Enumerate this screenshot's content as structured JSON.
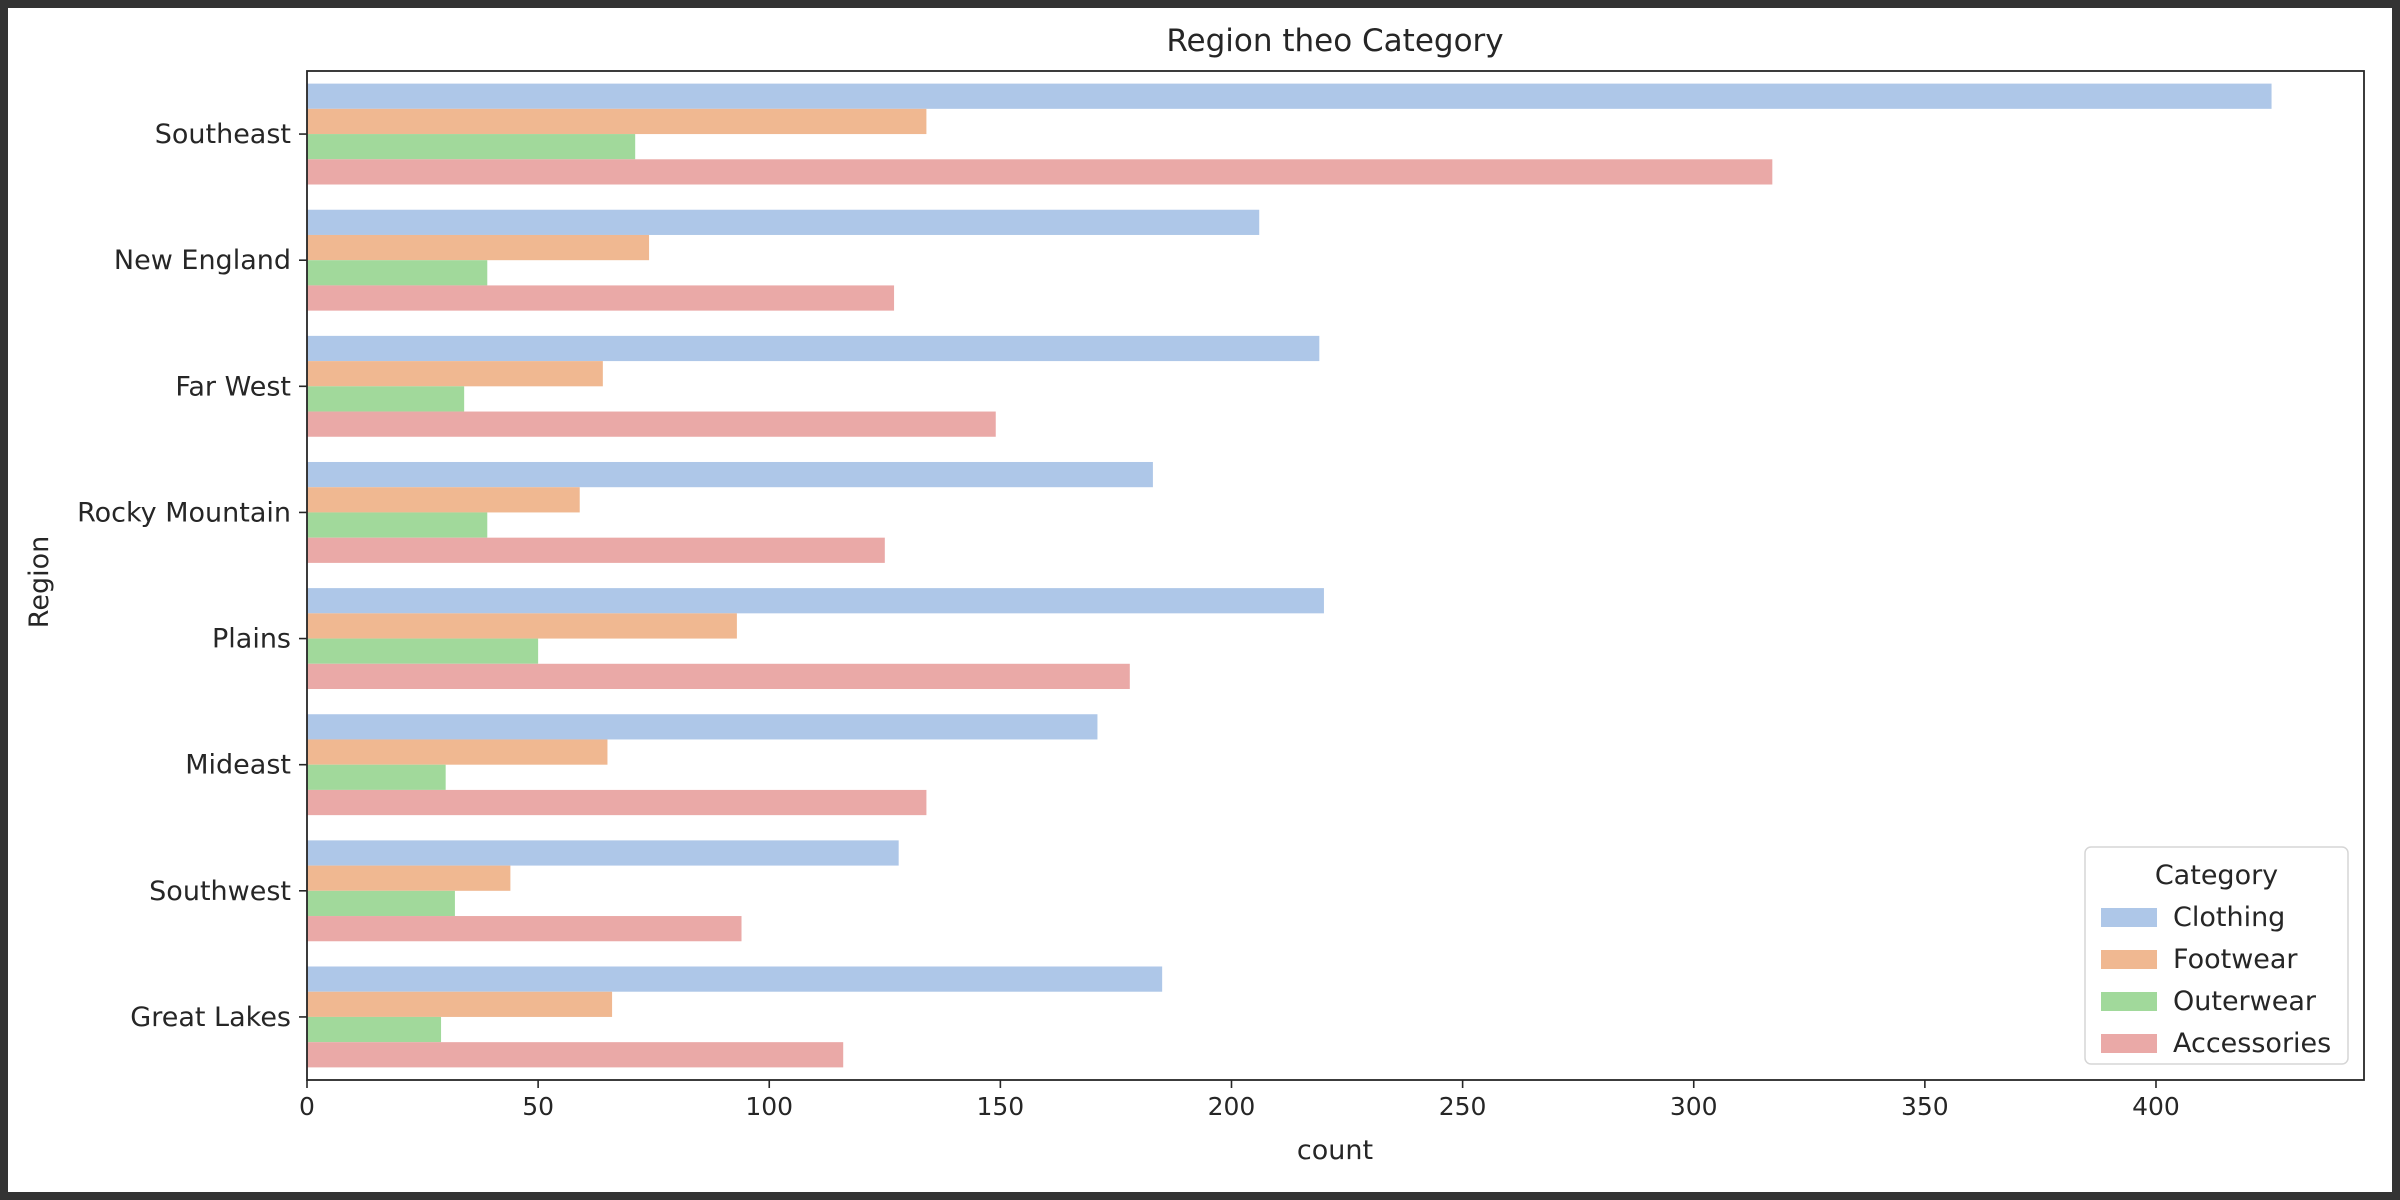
{
  "chart_data": {
    "type": "bar",
    "orientation": "horizontal",
    "title": "Region theo Category",
    "xlabel": "count",
    "ylabel": "Region",
    "xlim": [
      0,
      445
    ],
    "x_ticks": [
      0,
      50,
      100,
      150,
      200,
      250,
      300,
      350,
      400
    ],
    "grid": false,
    "categories": [
      "Southeast",
      "New England",
      "Far West",
      "Rocky Mountain",
      "Plains",
      "Mideast",
      "Southwest",
      "Great Lakes"
    ],
    "series": [
      {
        "name": "Clothing",
        "color": "#aec7e8",
        "values": [
          425,
          206,
          219,
          183,
          220,
          171,
          128,
          185
        ]
      },
      {
        "name": "Footwear",
        "color": "#f0b891",
        "values": [
          134,
          74,
          64,
          59,
          93,
          65,
          44,
          66
        ]
      },
      {
        "name": "Outerwear",
        "color": "#a1d99b",
        "values": [
          71,
          39,
          34,
          39,
          50,
          30,
          32,
          29
        ]
      },
      {
        "name": "Accessories",
        "color": "#eaa9a7",
        "values": [
          317,
          127,
          149,
          125,
          178,
          134,
          94,
          116
        ]
      }
    ],
    "legend": {
      "title": "Category",
      "placement": "lower-right"
    }
  }
}
